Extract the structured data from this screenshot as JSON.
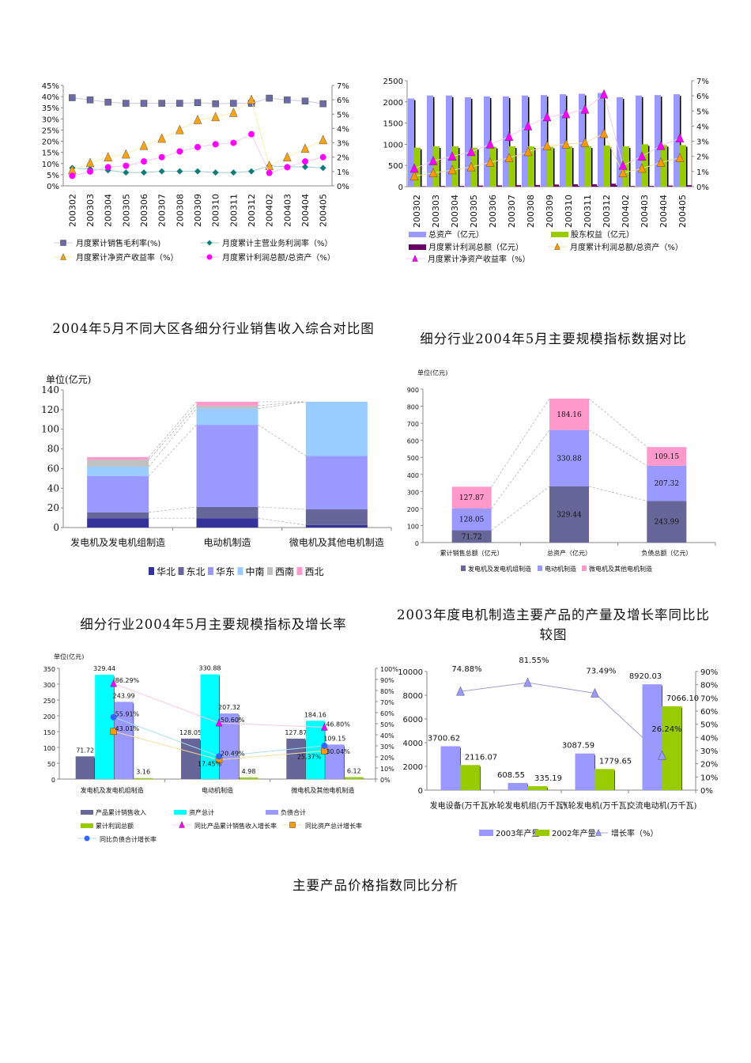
{
  "document": {
    "section_heading": "主要产品价格指数同比分析"
  },
  "chart_data": [
    {
      "type": "line",
      "title": "",
      "categories": [
        "200302",
        "200303",
        "200304",
        "200305",
        "200306",
        "200307",
        "200308",
        "200309",
        "200310",
        "200311",
        "200312",
        "200402",
        "200403",
        "200404",
        "200405"
      ],
      "yleft": {
        "min": 0,
        "max": 45,
        "ticks": [
          "0%",
          "5%",
          "10%",
          "15%",
          "20%",
          "25%",
          "30%",
          "35%",
          "40%",
          "45%"
        ]
      },
      "yright": {
        "min": 0,
        "max": 7,
        "ticks": [
          "0%",
          "1%",
          "2%",
          "3%",
          "4%",
          "5%",
          "6%",
          "7%"
        ]
      },
      "series": [
        {
          "name": "月度累计销售毛利率(%)",
          "axis": "left",
          "marker": "square",
          "color": "#6b6ba8",
          "line": "#c8c8e0",
          "values": [
            39.5,
            38.5,
            37.5,
            37,
            37,
            37,
            37,
            37.3,
            36.8,
            37,
            37,
            39.3,
            38.5,
            38,
            36.8
          ]
        },
        {
          "name": "月度累计主营业务利润率（%）",
          "axis": "left",
          "marker": "diamond",
          "color": "#0f7c78",
          "line": "#9ccfcc",
          "values": [
            8,
            7.5,
            7,
            6,
            6,
            6.5,
            6.5,
            6.5,
            6,
            6,
            6.5,
            9,
            8.5,
            8.5,
            8
          ]
        },
        {
          "name": "月度累计净资产收益率（%）",
          "axis": "right",
          "marker": "triangle",
          "color": "#f7a21b",
          "line": "#f5f0a8",
          "values": [
            1.1,
            1.6,
            2.0,
            2.2,
            2.8,
            3.3,
            3.9,
            4.6,
            4.8,
            5.1,
            6.0,
            1.4,
            2.0,
            2.6,
            3.2
          ]
        },
        {
          "name": "月度累计利润总额/总资产（%）",
          "axis": "right",
          "marker": "circle",
          "color": "#ff00ff",
          "line": "#f8c8f0",
          "values": [
            0.7,
            1.0,
            1.3,
            1.4,
            1.7,
            2.0,
            2.4,
            2.7,
            2.9,
            3.0,
            3.6,
            0.9,
            1.3,
            1.7,
            2.0
          ]
        }
      ]
    },
    {
      "type": "bar",
      "title": "",
      "categories": [
        "200302",
        "200303",
        "200304",
        "200305",
        "200306",
        "200307",
        "200308",
        "200309",
        "200310",
        "200311",
        "200312",
        "200402",
        "200403",
        "200404",
        "200405"
      ],
      "yleft": {
        "min": 0,
        "max": 2500,
        "ticks": [
          "0",
          "500",
          "1000",
          "1500",
          "2000",
          "2500"
        ]
      },
      "yright": {
        "min": 0,
        "max": 7,
        "ticks": [
          "0%",
          "1%",
          "2%",
          "3%",
          "4%",
          "5%",
          "6%",
          "7%"
        ]
      },
      "series": [
        {
          "name": "总资产（亿元）",
          "axis": "left",
          "kind": "bar",
          "color": "#9999ff",
          "values": [
            2080,
            2150,
            2150,
            2110,
            2130,
            2130,
            2150,
            2160,
            2180,
            2190,
            2210,
            2110,
            2150,
            2160,
            2180
          ]
        },
        {
          "name": "股东权益（亿元）",
          "axis": "left",
          "kind": "bar",
          "color": "#99cc00",
          "values": [
            920,
            950,
            950,
            920,
            940,
            950,
            950,
            940,
            950,
            950,
            970,
            950,
            1000,
            980,
            980
          ]
        },
        {
          "name": "月度累计利润总额（亿元）",
          "axis": "left",
          "kind": "bar",
          "color": "#660066",
          "values": [
            10,
            15,
            20,
            25,
            30,
            35,
            40,
            50,
            55,
            55,
            70,
            15,
            20,
            25,
            35
          ]
        },
        {
          "name": "月度累计利润总额/总资产（%）",
          "axis": "right",
          "kind": "line",
          "marker": "triangle",
          "color": "#ff9900",
          "line": "#f8dca0",
          "values": [
            0.7,
            0.9,
            1.1,
            1.3,
            1.6,
            1.9,
            2.3,
            2.7,
            2.8,
            2.9,
            3.5,
            0.9,
            1.2,
            1.6,
            1.9
          ]
        },
        {
          "name": "月度累计净资产收益率（%）",
          "axis": "right",
          "kind": "line",
          "marker": "triangle",
          "color": "#ff00ff",
          "line": "#f8c8f0",
          "values": [
            1.2,
            1.7,
            2.0,
            2.3,
            2.8,
            3.3,
            4.0,
            4.6,
            4.8,
            5.1,
            6.1,
            1.4,
            2.0,
            2.7,
            3.2
          ]
        }
      ]
    },
    {
      "type": "bar",
      "stacked": true,
      "title": "2004年5月不同大区各细分行业销售收入综合对比图",
      "unit_label": "单位(亿元)",
      "categories": [
        "发电机及发电机组制造",
        "电动机制造",
        "微电机及其他电机制造"
      ],
      "yleft": {
        "min": 0,
        "max": 140,
        "ticks": [
          "0",
          "20",
          "40",
          "60",
          "80",
          "100",
          "120",
          "140"
        ]
      },
      "series": [
        {
          "name": "华北",
          "color": "#333399",
          "values": [
            9.5,
            9.5,
            2.5
          ]
        },
        {
          "name": "东北",
          "color": "#666699",
          "values": [
            6,
            11.5,
            16
          ]
        },
        {
          "name": "华东",
          "color": "#9999ff",
          "values": [
            37,
            83.5,
            54.5
          ]
        },
        {
          "name": "中南",
          "color": "#99ccff",
          "values": [
            9.5,
            16.5,
            55
          ]
        },
        {
          "name": "西南",
          "color": "#c0c0c0",
          "values": [
            7,
            3,
            0
          ]
        },
        {
          "name": "西北",
          "color": "#ff99cc",
          "values": [
            2.7,
            4,
            0
          ]
        }
      ]
    },
    {
      "type": "bar",
      "stacked": true,
      "title": "细分行业2004年5月主要规模指标数据对比",
      "unit_label": "单位(亿元)",
      "categories": [
        "累计销售总额（亿元）",
        "总资产（亿元）",
        "负债总额（亿元）"
      ],
      "yleft": {
        "min": 0,
        "max": 900,
        "ticks": [
          "0",
          "100",
          "200",
          "300",
          "400",
          "500",
          "600",
          "700",
          "800",
          "900"
        ]
      },
      "series": [
        {
          "name": "发电机及发电机组制造",
          "color": "#666699",
          "values": [
            71.72,
            329.44,
            243.99
          ],
          "labels": [
            "71.72",
            "329.44",
            "243.99"
          ]
        },
        {
          "name": "电动机制造",
          "color": "#9999ff",
          "values": [
            128.05,
            330.88,
            207.32
          ],
          "labels": [
            "128.05",
            "330.88",
            "207.32"
          ]
        },
        {
          "name": "微电机及其他电机制造",
          "color": "#ff99cc",
          "values": [
            127.87,
            184.16,
            109.15
          ],
          "labels": [
            "127.87",
            "184.16",
            "109.15"
          ]
        }
      ]
    },
    {
      "type": "bar",
      "title": "细分行业2004年5月主要规模指标及增长率",
      "unit_label": "单位(亿元)",
      "categories": [
        "发电机及发电机组制造",
        "电动机制造",
        "微电机及其他电机制造"
      ],
      "yleft": {
        "min": 0,
        "max": 350,
        "ticks": [
          "0",
          "50",
          "100",
          "150",
          "200",
          "250",
          "300",
          "350"
        ]
      },
      "yright": {
        "min": 0,
        "max": 100,
        "ticks": [
          "0%",
          "10%",
          "20%",
          "30%",
          "40%",
          "50%",
          "60%",
          "70%",
          "80%",
          "90%",
          "100%"
        ]
      },
      "series": [
        {
          "name": "产品累计销售收入",
          "kind": "bar",
          "color": "#666699",
          "values": [
            71.72,
            128.05,
            127.87
          ],
          "labels": [
            "71.72",
            "128.05",
            "127.87"
          ]
        },
        {
          "name": "资产总计",
          "kind": "bar",
          "color": "#00ffff",
          "values": [
            329.44,
            330.88,
            184.16
          ],
          "labels": [
            "329.44",
            "330.88",
            "184.16"
          ]
        },
        {
          "name": "负债合计",
          "kind": "bar",
          "color": "#9999ff",
          "values": [
            243.99,
            207.32,
            109.15
          ],
          "labels": [
            "243.99",
            "207.32",
            "109.15"
          ]
        },
        {
          "name": "累计利润总额",
          "kind": "bar",
          "color": "#99cc00",
          "values": [
            3.16,
            4.98,
            6.12
          ],
          "labels": [
            "3.16",
            "4.98",
            "6.12"
          ]
        },
        {
          "name": "同比产品累计销售收入增长率",
          "kind": "line",
          "axis": "right",
          "marker": "triangle",
          "color": "#ff00ff",
          "line": "#f8c8e0",
          "values": [
            86.29,
            50.6,
            46.8
          ],
          "labels": [
            "86.29%",
            "50.60%",
            "46.80%"
          ]
        },
        {
          "name": "同比资产总计增长率",
          "kind": "line",
          "axis": "right",
          "marker": "square",
          "color": "#ff9900",
          "line": "#f8dca0",
          "values": [
            43.01,
            17.45,
            25.37
          ],
          "labels": [
            "43.01%",
            "17.45%",
            "25.37%"
          ]
        },
        {
          "name": "同比负债合计增长率",
          "kind": "line",
          "axis": "right",
          "marker": "circle",
          "color": "#3366ff",
          "line": "#a8e0f0",
          "values": [
            55.91,
            20.49,
            30.04
          ],
          "labels": [
            "55.91%",
            "20.49%",
            "30.04%"
          ]
        }
      ]
    },
    {
      "type": "bar",
      "title": "2003年度电机制造主要产品的产量及增长率同比比较图",
      "categories": [
        "发电设备(万千瓦)",
        "水轮发电机组(万千瓦)",
        "汽轮发电机(万千瓦)",
        "交流电动机(万千瓦)"
      ],
      "yleft": {
        "min": 0,
        "max": 10000,
        "ticks": [
          "0",
          "2000",
          "4000",
          "6000",
          "8000",
          "10000"
        ]
      },
      "yright": {
        "min": 0,
        "max": 90,
        "ticks": [
          "0%",
          "10%",
          "20%",
          "30%",
          "40%",
          "50%",
          "60%",
          "70%",
          "80%",
          "90%"
        ]
      },
      "series": [
        {
          "name": "2003年产量",
          "kind": "bar",
          "color": "#9999ff",
          "values": [
            3700.62,
            608.55,
            3087.59,
            8920.03
          ],
          "labels": [
            "3700.62",
            "608.55",
            "3087.59",
            "8920.03"
          ]
        },
        {
          "name": "2002年产量",
          "kind": "bar",
          "color": "#99cc00",
          "values": [
            2116.07,
            335.19,
            1779.65,
            7066.1
          ],
          "labels": [
            "2116.07",
            "335.19",
            "1779.65",
            "7066.10"
          ]
        },
        {
          "name": "增长率（%）",
          "kind": "line",
          "axis": "right",
          "marker": "triangle",
          "color": "#9999ff",
          "line": "#a0a0d0",
          "values": [
            74.88,
            81.55,
            73.49,
            26.24
          ],
          "labels": [
            "74.88%",
            "81.55%",
            "73.49%",
            "26.24%"
          ]
        }
      ]
    }
  ]
}
